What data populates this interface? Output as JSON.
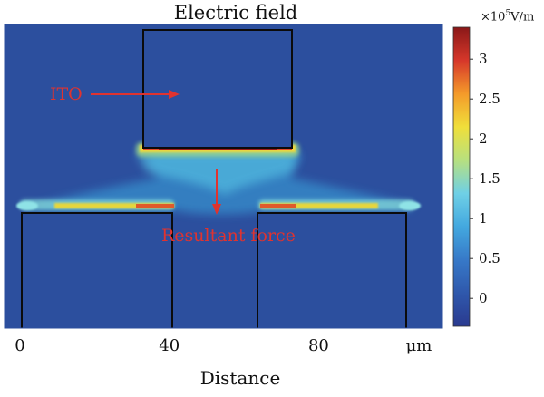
{
  "chart_data": {
    "type": "heatmap",
    "title": "Electric field",
    "xlabel": "Distance",
    "x_ticks": [
      "0",
      "40",
      "80"
    ],
    "x_unit": "μm",
    "colorbar": {
      "unit_prefix": "×10",
      "unit_exp": "5",
      "unit_suffix": "V/m",
      "ticks": [
        "0",
        "0.5",
        "1",
        "1.5",
        "2",
        "2.5",
        "3"
      ],
      "tick_values": [
        0,
        0.5,
        1,
        1.5,
        2,
        2.5,
        3
      ],
      "range": [
        -0.35,
        3.4
      ],
      "colormap": [
        "#2a3a8f",
        "#2f58ac",
        "#3779c8",
        "#43a8df",
        "#6fd0e6",
        "#b7e07f",
        "#f0df3a",
        "#f49a2a",
        "#d6372a",
        "#8a1818"
      ]
    },
    "field_max": 3.4,
    "annotations": {
      "ito": "ITO",
      "force": "Resultant force"
    },
    "colors": {
      "annotation": "#e0332f",
      "background": "#2c4f9e"
    }
  }
}
